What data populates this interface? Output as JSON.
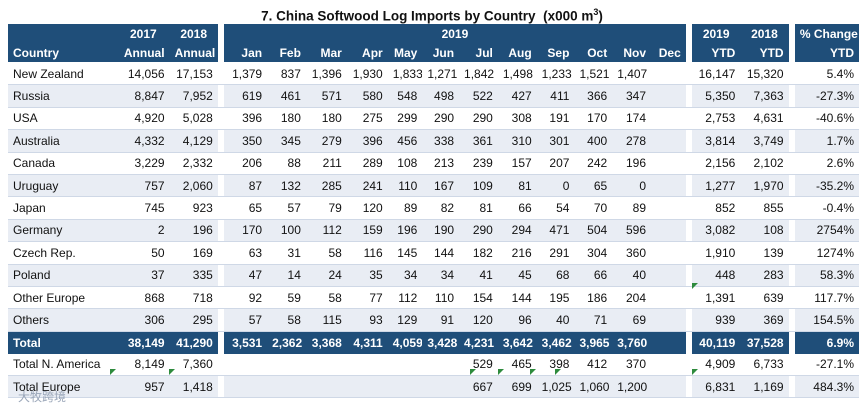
{
  "title": "7. China Softwood Log Imports by Country",
  "unit": "(x000 m",
  "unit_sup": "3",
  "unit_close": ")",
  "header": {
    "country": "Country",
    "y2017": "2017",
    "y2018": "2018",
    "annual": "Annual",
    "y2019": "2019",
    "months": [
      "Jan",
      "Feb",
      "Mar",
      "Apr",
      "May",
      "Jun",
      "Jul",
      "Aug",
      "Sep",
      "Oct",
      "Nov",
      "Dec"
    ],
    "ytd_2019": "2019",
    "ytd_2018": "2018",
    "ytd": "YTD",
    "pct_change": "% Change",
    "pct_ytd": "YTD"
  },
  "rows": [
    {
      "country": "New Zealand",
      "a2017": "14,056",
      "a2018": "17,153",
      "m": [
        "1,379",
        "837",
        "1,396",
        "1,930",
        "1,833",
        "1,271",
        "1,842",
        "1,498",
        "1,233",
        "1,521",
        "1,407",
        ""
      ],
      "ytd2019": "16,147",
      "ytd2018": "15,320",
      "pct": "5.4%"
    },
    {
      "country": "Russia",
      "a2017": "8,847",
      "a2018": "7,952",
      "m": [
        "619",
        "461",
        "571",
        "580",
        "548",
        "498",
        "522",
        "427",
        "411",
        "366",
        "347",
        ""
      ],
      "ytd2019": "5,350",
      "ytd2018": "7,363",
      "pct": "-27.3%"
    },
    {
      "country": "USA",
      "a2017": "4,920",
      "a2018": "5,028",
      "m": [
        "396",
        "180",
        "180",
        "275",
        "299",
        "290",
        "290",
        "308",
        "191",
        "170",
        "174",
        ""
      ],
      "ytd2019": "2,753",
      "ytd2018": "4,631",
      "pct": "-40.6%"
    },
    {
      "country": "Australia",
      "a2017": "4,332",
      "a2018": "4,129",
      "m": [
        "350",
        "345",
        "279",
        "396",
        "456",
        "338",
        "361",
        "310",
        "301",
        "400",
        "278",
        ""
      ],
      "ytd2019": "3,814",
      "ytd2018": "3,749",
      "pct": "1.7%"
    },
    {
      "country": "Canada",
      "a2017": "3,229",
      "a2018": "2,332",
      "m": [
        "206",
        "88",
        "211",
        "289",
        "108",
        "213",
        "239",
        "157",
        "207",
        "242",
        "196",
        ""
      ],
      "ytd2019": "2,156",
      "ytd2018": "2,102",
      "pct": "2.6%"
    },
    {
      "country": "Uruguay",
      "a2017": "757",
      "a2018": "2,060",
      "m": [
        "87",
        "132",
        "285",
        "241",
        "110",
        "167",
        "109",
        "81",
        "0",
        "65",
        "0",
        ""
      ],
      "ytd2019": "1,277",
      "ytd2018": "1,970",
      "pct": "-35.2%"
    },
    {
      "country": "Japan",
      "a2017": "745",
      "a2018": "923",
      "m": [
        "65",
        "57",
        "79",
        "120",
        "89",
        "82",
        "81",
        "66",
        "54",
        "70",
        "89",
        ""
      ],
      "ytd2019": "852",
      "ytd2018": "855",
      "pct": "-0.4%"
    },
    {
      "country": "Germany",
      "a2017": "2",
      "a2018": "196",
      "m": [
        "170",
        "100",
        "112",
        "159",
        "196",
        "190",
        "290",
        "294",
        "471",
        "504",
        "596",
        ""
      ],
      "ytd2019": "3,082",
      "ytd2018": "108",
      "pct": "2754%"
    },
    {
      "country": "Czech Rep.",
      "a2017": "50",
      "a2018": "169",
      "m": [
        "63",
        "31",
        "58",
        "116",
        "145",
        "144",
        "182",
        "216",
        "291",
        "304",
        "360",
        ""
      ],
      "ytd2019": "1,910",
      "ytd2018": "139",
      "pct": "1274%"
    },
    {
      "country": "Poland",
      "a2017": "37",
      "a2018": "335",
      "m": [
        "47",
        "14",
        "24",
        "35",
        "34",
        "34",
        "41",
        "45",
        "68",
        "66",
        "40",
        ""
      ],
      "ytd2019": "448",
      "ytd2018": "283",
      "pct": "58.3%"
    },
    {
      "country": "Other Europe",
      "a2017": "868",
      "a2018": "718",
      "m": [
        "92",
        "59",
        "58",
        "77",
        "112",
        "110",
        "154",
        "144",
        "195",
        "186",
        "204",
        ""
      ],
      "ytd2019": "1,391",
      "ytd2018": "639",
      "pct": "117.7%"
    },
    {
      "country": "Others",
      "a2017": "306",
      "a2018": "295",
      "m": [
        "57",
        "58",
        "115",
        "93",
        "129",
        "91",
        "120",
        "96",
        "40",
        "71",
        "69",
        ""
      ],
      "ytd2019": "939",
      "ytd2018": "369",
      "pct": "154.5%"
    }
  ],
  "total": {
    "country": "Total",
    "a2017": "38,149",
    "a2018": "41,290",
    "m": [
      "3,531",
      "2,362",
      "3,368",
      "4,311",
      "4,059",
      "3,428",
      "4,231",
      "3,642",
      "3,462",
      "3,965",
      "3,760",
      ""
    ],
    "ytd2019": "40,119",
    "ytd2018": "37,528",
    "pct": "6.9%"
  },
  "sub_rows": [
    {
      "country": "Total N. America",
      "a2017": "8,149",
      "a2018": "7,360",
      "m": [
        "",
        "",
        "",
        "",
        "",
        "",
        "529",
        "465",
        "398",
        "412",
        "370",
        ""
      ],
      "ytd2019": "4,909",
      "ytd2018": "6,733",
      "pct": "-27.1%"
    },
    {
      "country": "Total Europe",
      "a2017": "957",
      "a2018": "1,418",
      "m": [
        "",
        "",
        "",
        "",
        "",
        "",
        "667",
        "699",
        "1,025",
        "1,060",
        "1,200",
        ""
      ],
      "ytd2019": "6,831",
      "ytd2018": "1,169",
      "pct": "484.3%"
    }
  ],
  "watermark": "大牧跨境"
}
